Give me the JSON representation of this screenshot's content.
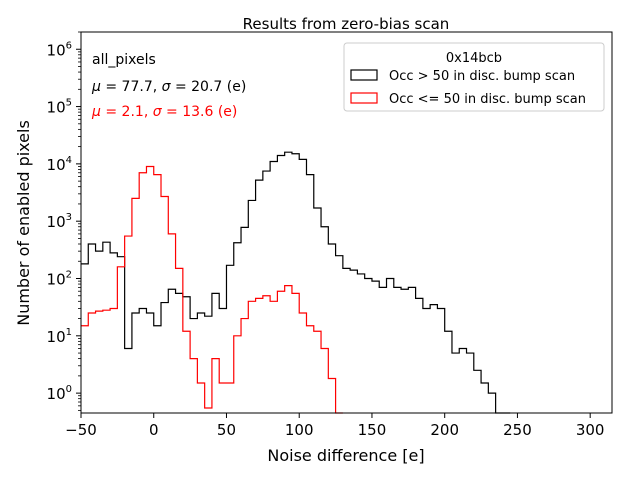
{
  "chart_data": {
    "type": "step-histogram",
    "title": "Results from zero-bias scan",
    "xlabel": "Noise difference [e]",
    "ylabel": "Number of enabled pixels",
    "xlim": [
      -50,
      315
    ],
    "ylim": [
      0.45,
      2000000
    ],
    "yscale": "log",
    "bin_width": 5,
    "x_ticks": [
      -50,
      0,
      50,
      100,
      150,
      200,
      250,
      300
    ],
    "x_tick_labels": [
      "−50",
      "0",
      "50",
      "100",
      "150",
      "200",
      "250",
      "300"
    ],
    "y_ticks": [
      1,
      10,
      100,
      1000,
      10000,
      100000,
      1000000
    ],
    "y_tick_exponents": [
      "0",
      "1",
      "2",
      "3",
      "4",
      "5",
      "6"
    ],
    "y_tick_base": "10",
    "annotations": {
      "label": "all_pixels",
      "stats_black": {
        "mu_sym": "μ",
        "mu_text": " = 77.7, ",
        "sigma_sym": "σ",
        "sigma_text": " = 20.7 (e)"
      },
      "stats_red": {
        "mu_sym": "μ",
        "mu_text": " = 2.1, ",
        "sigma_sym": "σ",
        "sigma_text": " = 13.6 (e)"
      }
    },
    "legend": {
      "title": "0x14bcb",
      "position": "top-right"
    },
    "series": [
      {
        "name": "Occ > 50 in disc. bump scan",
        "color": "#000000",
        "x_start": -50,
        "values": [
          180,
          400,
          300,
          430,
          280,
          240,
          6,
          25,
          30,
          25,
          15,
          38,
          65,
          55,
          48,
          20,
          25,
          22,
          55,
          30,
          170,
          420,
          780,
          2300,
          5200,
          7500,
          11000,
          14000,
          16000,
          15000,
          12000,
          6500,
          1700,
          800,
          400,
          250,
          150,
          140,
          120,
          100,
          90,
          70,
          100,
          70,
          65,
          70,
          45,
          30,
          35,
          30,
          12,
          5,
          6,
          5,
          2.5,
          1.5,
          1,
          0.45,
          0.45
        ]
      },
      {
        "name": "Occ <= 50 in disc. bump scan",
        "color": "#ff0000",
        "x_start": -50,
        "values": [
          15,
          25,
          27,
          28,
          30,
          160,
          550,
          2500,
          7000,
          9000,
          6500,
          2700,
          600,
          150,
          12,
          4,
          1.5,
          0.55,
          4,
          1.5,
          1.5,
          10,
          20,
          40,
          45,
          50,
          40,
          60,
          75,
          55,
          25,
          15,
          12,
          6,
          1.8,
          0.45
        ]
      }
    ]
  }
}
